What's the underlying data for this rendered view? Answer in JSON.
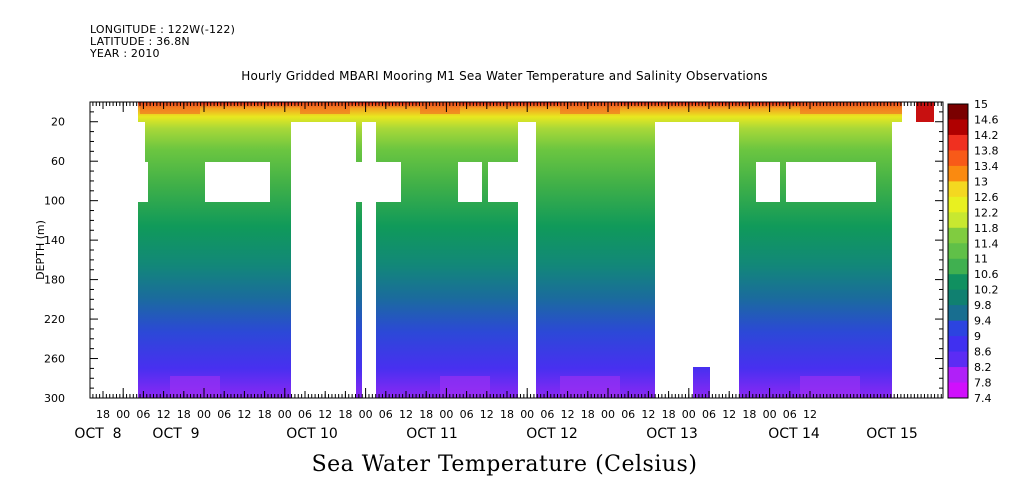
{
  "header": {
    "longitude": "LONGITUDE : 122W(-122)",
    "latitude": "LATITUDE : 36.8N",
    "year": "YEAR : 2010"
  },
  "chart_data": {
    "type": "heatmap",
    "title": "Hourly Gridded MBARI Mooring M1 Sea Water Temperature and Salinity Observations",
    "bottom_title": "Sea Water Temperature (Celsius)",
    "ylabel": "DEPTH (m)",
    "ylim": [
      300,
      0
    ],
    "yticks": [
      20,
      60,
      100,
      140,
      180,
      220,
      260,
      300
    ],
    "x_hour_ticks": [
      "18",
      "00",
      "06",
      "12",
      "18",
      "00",
      "06",
      "12",
      "18",
      "00",
      "06",
      "12",
      "18",
      "00",
      "06",
      "12",
      "18",
      "00",
      "06",
      "12",
      "18",
      "00",
      "06",
      "12",
      "18",
      "00",
      "06",
      "12",
      "18",
      "00",
      "06",
      "12",
      "18",
      "00",
      "06",
      "12"
    ],
    "x_day_labels": [
      "OCT  8",
      "OCT  9",
      "OCT 10",
      "OCT 11",
      "OCT 12",
      "OCT 13",
      "OCT 14",
      "OCT 15"
    ],
    "x_range_hours": [
      "Oct 8 12:00",
      "Oct 15 15:00"
    ],
    "colorbar_min": 7.4,
    "colorbar_max": 15,
    "colorbar_labels": [
      "15",
      "14.6",
      "14.2",
      "13.8",
      "13.4",
      "13",
      "12.6",
      "12.2",
      "11.8",
      "11.4",
      "11",
      "10.6",
      "10.2",
      "9.8",
      "9.4",
      "9",
      "8.6",
      "8.2",
      "7.8",
      "7.4"
    ],
    "temperature_profile": [
      {
        "depth": 10,
        "temp": 13.8
      },
      {
        "depth": 20,
        "temp": 12.0
      },
      {
        "depth": 40,
        "temp": 11.2
      },
      {
        "depth": 60,
        "temp": 10.8
      },
      {
        "depth": 100,
        "temp": 10.3
      },
      {
        "depth": 140,
        "temp": 10.0
      },
      {
        "depth": 180,
        "temp": 9.5
      },
      {
        "depth": 220,
        "temp": 9.0
      },
      {
        "depth": 260,
        "temp": 8.4
      },
      {
        "depth": 300,
        "temp": 7.8
      }
    ],
    "colors": {
      "purple": "#c800ff",
      "blue": "#3c3cff",
      "teal": "#10a060",
      "green": "#60c040",
      "yellow": "#f0f020",
      "red": "#c00000"
    }
  }
}
